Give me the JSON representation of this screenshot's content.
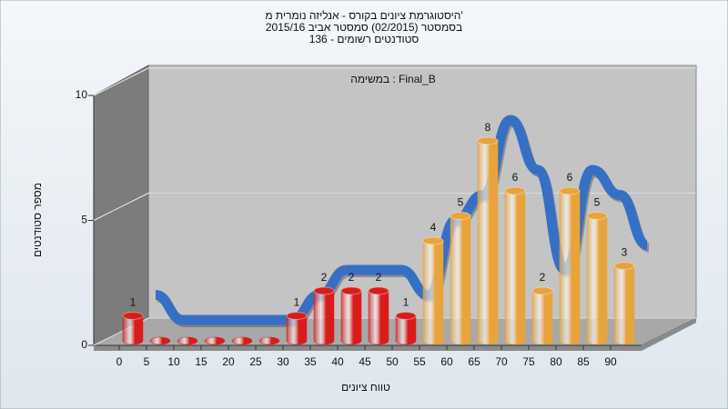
{
  "chart_data": {
    "type": "bar",
    "title": [
      "היסטוגרמת ציונים בקורס - אנליזה נומרית מ'",
      "בסמסטר  (02/2015)  סמסטר אביב 2015/16",
      "סטודנטים רשומים - 136"
    ],
    "annotation": "במשימה : Final_B",
    "xlabel": "טווח ציונים",
    "ylabel": "מספר סטודנטים",
    "categories": [
      "0",
      "5",
      "10",
      "15",
      "20",
      "25",
      "30",
      "35",
      "40",
      "45",
      "50",
      "55",
      "60",
      "65",
      "70",
      "75",
      "80",
      "85",
      "90"
    ],
    "values": [
      1,
      0,
      0,
      0,
      0,
      0,
      1,
      2,
      2,
      2,
      1,
      4,
      5,
      8,
      6,
      2,
      6,
      5,
      3
    ],
    "colors": [
      "#d81c1c",
      "#d81c1c",
      "#d81c1c",
      "#d81c1c",
      "#d81c1c",
      "#d81c1c",
      "#d81c1c",
      "#d81c1c",
      "#d81c1c",
      "#d81c1c",
      "#d81c1c",
      "#e8a33c",
      "#e8a33c",
      "#e8a33c",
      "#e8a33c",
      "#e8a33c",
      "#e8a33c",
      "#e8a33c",
      "#e8a33c"
    ],
    "trend_color": "#3670c4",
    "ylim": [
      0,
      10
    ],
    "yticks": [
      0,
      5,
      10
    ],
    "grid": true
  }
}
